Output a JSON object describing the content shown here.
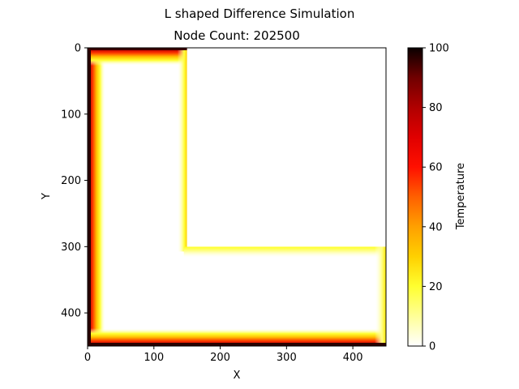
{
  "chart_data": {
    "type": "heatmap",
    "suptitle": "L shaped Difference Simulation",
    "title": "Node Count: 202500",
    "xlabel": "X",
    "ylabel": "Y",
    "xlim": [
      0,
      450
    ],
    "ylim": [
      450,
      0
    ],
    "x_ticks": [
      0,
      100,
      200,
      300,
      400
    ],
    "y_ticks": [
      0,
      100,
      200,
      300,
      400
    ],
    "grid_size": [
      450,
      450
    ],
    "domain": {
      "shape": "L",
      "vertical_arm": {
        "x": [
          0,
          150
        ],
        "y": [
          0,
          450
        ]
      },
      "horizontal_arm": {
        "x": [
          0,
          450
        ],
        "y": [
          300,
          450
        ]
      }
    },
    "boundary_temperature": 100,
    "interior_temperature": 0,
    "colormap": "hot_r",
    "colorbar": {
      "label": "Temperature",
      "min": 0,
      "max": 100,
      "ticks": [
        0,
        20,
        40,
        60,
        80,
        100
      ]
    },
    "grid": false
  }
}
